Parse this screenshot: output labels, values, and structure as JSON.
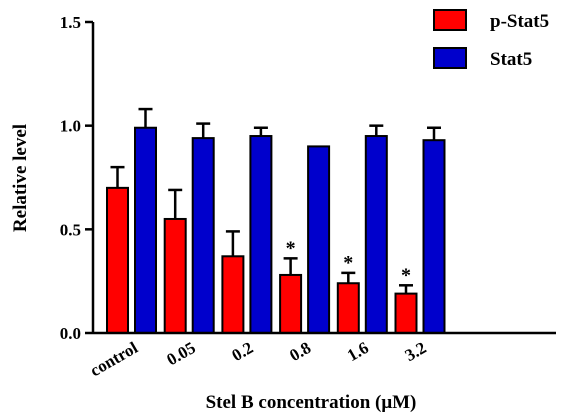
{
  "chart_data": {
    "type": "bar",
    "xlabel": "Stel B concentration (μM)",
    "ylabel": "Relative level",
    "categories": [
      "control",
      "0.05",
      "0.2",
      "0.8",
      "1.6",
      "3.2"
    ],
    "ylim": [
      0,
      1.5
    ],
    "yticks": [
      "0.0",
      "0.5",
      "1.0",
      "1.5"
    ],
    "series": [
      {
        "name": "p-Stat5",
        "color": "#ff0000",
        "values": [
          0.7,
          0.55,
          0.37,
          0.28,
          0.24,
          0.19
        ],
        "errors": [
          0.1,
          0.14,
          0.12,
          0.08,
          0.05,
          0.04
        ]
      },
      {
        "name": "Stat5",
        "color": "#0000cc",
        "values": [
          0.99,
          0.94,
          0.95,
          0.9,
          0.95,
          0.93
        ],
        "errors": [
          0.09,
          0.07,
          0.04,
          0.0,
          0.05,
          0.06
        ]
      }
    ],
    "annotations": [
      {
        "category": "0.8",
        "series": "p-Stat5",
        "text": "*"
      },
      {
        "category": "1.6",
        "series": "p-Stat5",
        "text": "*"
      },
      {
        "category": "3.2",
        "series": "p-Stat5",
        "text": "*"
      }
    ],
    "legend": "top-right",
    "grid": false
  }
}
